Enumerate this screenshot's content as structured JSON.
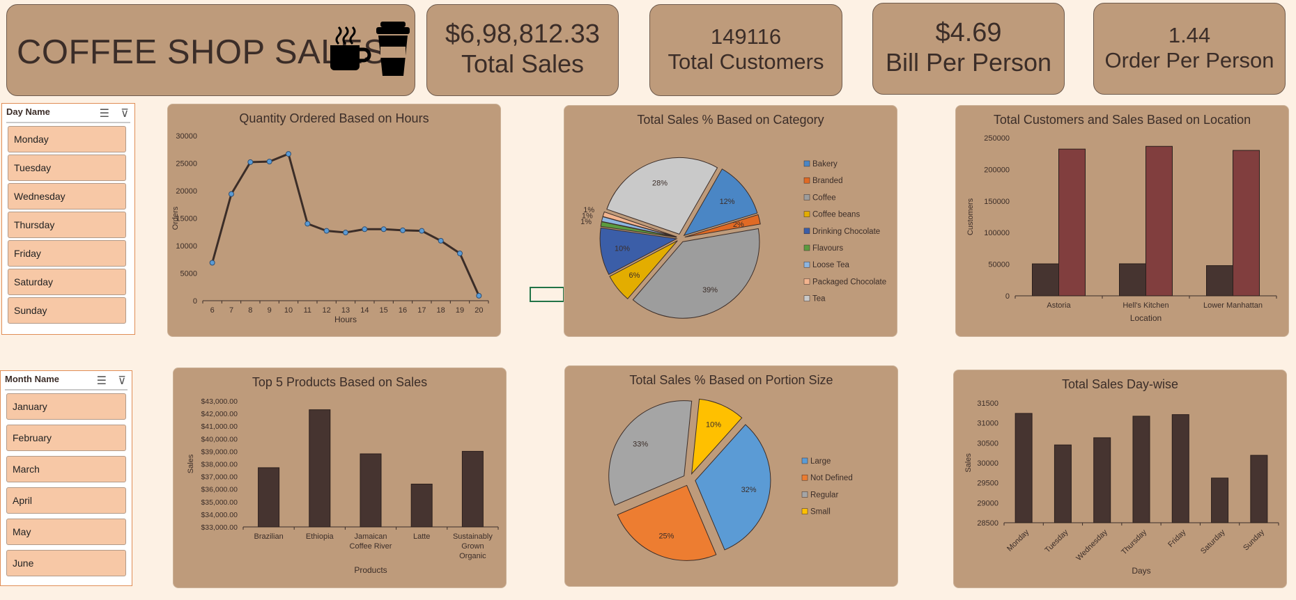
{
  "header": {
    "title": "COFFEE SHOP SALES"
  },
  "kpis": [
    {
      "value": "$6,98,812.33",
      "label": "Total Sales"
    },
    {
      "value": "149116",
      "label": "Total Customers"
    },
    {
      "value": "$4.69",
      "label": "Bill Per Person"
    },
    {
      "value": "1.44",
      "label": "Order Per Person"
    }
  ],
  "slicers": {
    "day": {
      "title": "Day Name",
      "items": [
        "Monday",
        "Tuesday",
        "Wednesday",
        "Thursday",
        "Friday",
        "Saturday",
        "Sunday"
      ]
    },
    "month": {
      "title": "Month Name",
      "items": [
        "January",
        "February",
        "March",
        "April",
        "May",
        "June"
      ]
    }
  },
  "colors": {
    "dark_brown": "#463430",
    "maroon": "#813e3e",
    "card": "#be9b7b",
    "slicer_item": "#f7c8a6"
  },
  "chart_data": [
    {
      "id": "hours",
      "type": "line",
      "title": "Quantity Ordered Based on Hours",
      "xlabel": "Hours",
      "ylabel": "Orders",
      "x": [
        6,
        7,
        8,
        9,
        10,
        11,
        12,
        13,
        14,
        15,
        16,
        17,
        18,
        19,
        20
      ],
      "values": [
        6900,
        19400,
        25200,
        25300,
        26700,
        14000,
        12700,
        12400,
        13000,
        13000,
        12800,
        12700,
        10900,
        8600,
        900
      ],
      "ylim": [
        0,
        30000
      ],
      "yticks": [
        0,
        5000,
        10000,
        15000,
        20000,
        25000,
        30000
      ]
    },
    {
      "id": "category",
      "type": "pie",
      "title": "Total Sales % Based on Category",
      "series": [
        {
          "name": "Bakery",
          "value": 12,
          "label": "12%",
          "color": "#4a86c5"
        },
        {
          "name": "Branded",
          "value": 2,
          "label": "2%",
          "color": "#e06a24"
        },
        {
          "name": "Coffee",
          "value": 39,
          "label": "39%",
          "color": "#9d9d9d"
        },
        {
          "name": "Coffee beans",
          "value": 6,
          "label": "6%",
          "color": "#e3ad00"
        },
        {
          "name": "Drinking Chocolate",
          "value": 10,
          "label": "10%",
          "color": "#3b5ea8"
        },
        {
          "name": "Flavours",
          "value": 1,
          "label": "1%",
          "color": "#5c9b3f"
        },
        {
          "name": "Loose Tea",
          "value": 1,
          "label": "1%",
          "color": "#8db5e0"
        },
        {
          "name": "Packaged Chocolate",
          "value": 1,
          "label": "1%",
          "color": "#f3b48e"
        },
        {
          "name": "Tea",
          "value": 28,
          "label": "28%",
          "color": "#c9c9c9"
        }
      ],
      "legend": "right"
    },
    {
      "id": "location",
      "type": "bar",
      "title": "Total Customers and Sales Based on Location",
      "xlabel": "Location",
      "ylabel": "Customers",
      "categories": [
        "Astoria",
        "Hell's Kitchen",
        "Lower Manhattan"
      ],
      "series": [
        {
          "values": [
            50600,
            50700,
            47800
          ],
          "color": "#463430"
        },
        {
          "values": [
            232200,
            236500,
            230100
          ],
          "color": "#813e3e"
        }
      ],
      "ylim": [
        0,
        250000
      ],
      "yticks": [
        0,
        50000,
        100000,
        150000,
        200000,
        250000
      ]
    },
    {
      "id": "products",
      "type": "bar",
      "title": "Top 5 Products Based on Sales",
      "xlabel": "Products",
      "ylabel": "Sales",
      "categories": [
        "Brazilian",
        "Ethiopia",
        "Jamaican Coffee River",
        "Latte",
        "Sustainably Grown Organic"
      ],
      "values": [
        37700,
        42300,
        38800,
        36400,
        39000
      ],
      "ylim": [
        33000,
        43000
      ],
      "yticks": [
        "$33,000.00",
        "$34,000.00",
        "$35,000.00",
        "$36,000.00",
        "$37,000.00",
        "$38,000.00",
        "$39,000.00",
        "$40,000.00",
        "$41,000.00",
        "$42,000.00",
        "$43,000.00"
      ]
    },
    {
      "id": "portion",
      "type": "pie",
      "title": "Total Sales % Based on Portion Size",
      "series": [
        {
          "name": "Large",
          "value": 32,
          "label": "32%",
          "color": "#5b9bd5"
        },
        {
          "name": "Not Defined",
          "value": 25,
          "label": "25%",
          "color": "#ed7d31"
        },
        {
          "name": "Regular",
          "value": 33,
          "label": "33%",
          "color": "#a5a5a5"
        },
        {
          "name": "Small",
          "value": 10,
          "label": "10%",
          "color": "#ffc000"
        }
      ],
      "legend": "right"
    },
    {
      "id": "days",
      "type": "bar",
      "title": "Total Sales Day-wise",
      "xlabel": "Days",
      "ylabel": "Sales",
      "categories": [
        "Monday",
        "Tuesday",
        "Wednesday",
        "Thursday",
        "Friday",
        "Saturday",
        "Sunday"
      ],
      "values": [
        31240,
        30450,
        30630,
        31170,
        31210,
        29620,
        30190
      ],
      "ylim": [
        28500,
        31500
      ],
      "yticks": [
        28500,
        29000,
        29500,
        30000,
        30500,
        31000,
        31500
      ]
    }
  ]
}
